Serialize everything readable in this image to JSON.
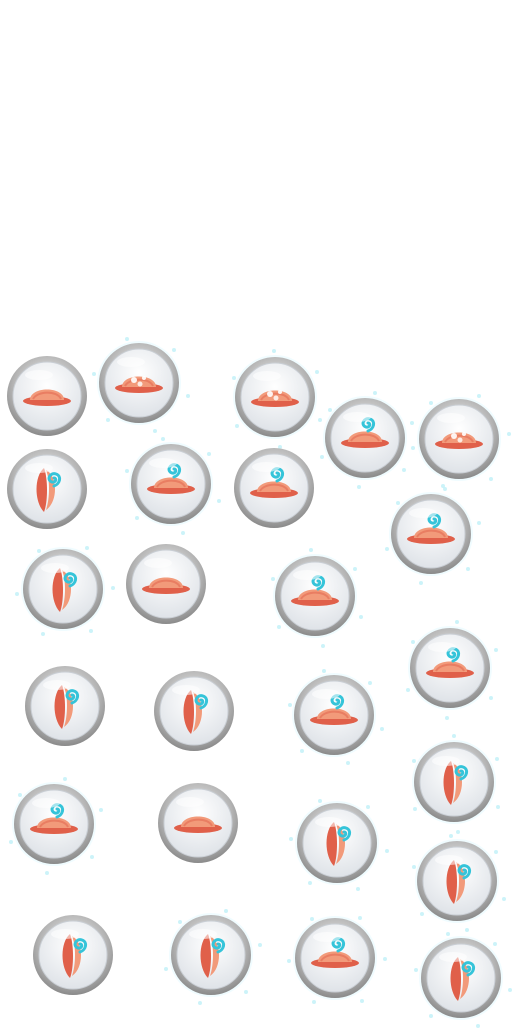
{
  "sprite_sheet": {
    "background": "#ffffff",
    "colors": {
      "hat_red": "#e0604a",
      "hat_light": "#f29a7a",
      "swirl_cyan": "#35c4d9",
      "rim_silver": "#b5b5b5",
      "face_white": "#f4f6f8"
    },
    "tokens": [
      {
        "icon": "red-hat-icon",
        "variant": "plain",
        "glow": false
      },
      {
        "icon": "red-hat-icon",
        "variant": "sparkle",
        "glow": true
      },
      {
        "icon": "red-hat-icon",
        "variant": "sparkle",
        "glow": true
      },
      {
        "icon": "red-hat-icon",
        "variant": "swirl",
        "glow": true
      },
      {
        "icon": "red-hat-icon",
        "variant": "sparkle",
        "glow": true
      },
      {
        "icon": "red-hat-swirl-icon",
        "variant": "side",
        "glow": false
      },
      {
        "icon": "red-hat-swirl-icon",
        "variant": "swirl",
        "glow": true
      },
      {
        "icon": "red-hat-swirl-icon",
        "variant": "swirl",
        "glow": false
      },
      {
        "icon": "red-hat-swirl-icon",
        "variant": "swirl",
        "glow": true
      },
      {
        "icon": "red-hat-swirl-icon",
        "variant": "side",
        "glow": true
      },
      {
        "icon": "red-hat-icon",
        "variant": "plain",
        "glow": false
      },
      {
        "icon": "red-hat-swirl-icon",
        "variant": "swirl",
        "glow": true
      },
      {
        "icon": "red-hat-swirl-icon",
        "variant": "swirl",
        "glow": true
      },
      {
        "icon": "red-hat-swirl-icon",
        "variant": "side",
        "glow": false
      },
      {
        "icon": "red-hat-swirl-icon",
        "variant": "side",
        "glow": false
      },
      {
        "icon": "red-hat-swirl-icon",
        "variant": "swirl",
        "glow": true
      },
      {
        "icon": "red-hat-swirl-icon",
        "variant": "side",
        "glow": true
      },
      {
        "icon": "red-hat-swirl-icon",
        "variant": "swirl",
        "glow": true
      },
      {
        "icon": "red-hat-icon",
        "variant": "plain",
        "glow": false
      },
      {
        "icon": "red-hat-swirl-icon",
        "variant": "side",
        "glow": true
      },
      {
        "icon": "red-hat-swirl-icon",
        "variant": "side",
        "glow": true
      },
      {
        "icon": "red-hat-swirl-icon",
        "variant": "side",
        "glow": false
      },
      {
        "icon": "red-hat-swirl-icon",
        "variant": "side",
        "glow": true
      },
      {
        "icon": "red-hat-swirl-icon",
        "variant": "swirl",
        "glow": true
      },
      {
        "icon": "red-hat-swirl-icon",
        "variant": "side",
        "glow": true
      }
    ]
  }
}
